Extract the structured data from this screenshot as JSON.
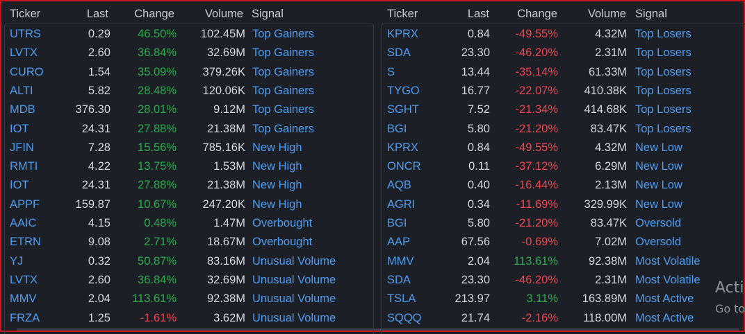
{
  "headers": {
    "ticker": "Ticker",
    "last": "Last",
    "change": "Change",
    "volume": "Volume",
    "signal": "Signal"
  },
  "left_rows": [
    {
      "ticker": "UTRS",
      "last": "0.29",
      "change": "46.50%",
      "dir": "pos",
      "volume": "102.45M",
      "signal": "Top Gainers"
    },
    {
      "ticker": "LVTX",
      "last": "2.60",
      "change": "36.84%",
      "dir": "pos",
      "volume": "32.69M",
      "signal": "Top Gainers"
    },
    {
      "ticker": "CURO",
      "last": "1.54",
      "change": "35.09%",
      "dir": "pos",
      "volume": "379.26K",
      "signal": "Top Gainers"
    },
    {
      "ticker": "ALTI",
      "last": "5.82",
      "change": "28.48%",
      "dir": "pos",
      "volume": "120.06K",
      "signal": "Top Gainers"
    },
    {
      "ticker": "MDB",
      "last": "376.30",
      "change": "28.01%",
      "dir": "pos",
      "volume": "9.12M",
      "signal": "Top Gainers"
    },
    {
      "ticker": "IOT",
      "last": "24.31",
      "change": "27.88%",
      "dir": "pos",
      "volume": "21.38M",
      "signal": "Top Gainers"
    },
    {
      "ticker": "JFIN",
      "last": "7.28",
      "change": "15.56%",
      "dir": "pos",
      "volume": "785.16K",
      "signal": "New High"
    },
    {
      "ticker": "RMTI",
      "last": "4.22",
      "change": "13.75%",
      "dir": "pos",
      "volume": "1.53M",
      "signal": "New High"
    },
    {
      "ticker": "IOT",
      "last": "24.31",
      "change": "27.88%",
      "dir": "pos",
      "volume": "21.38M",
      "signal": "New High"
    },
    {
      "ticker": "APPF",
      "last": "159.87",
      "change": "10.67%",
      "dir": "pos",
      "volume": "247.20K",
      "signal": "New High"
    },
    {
      "ticker": "AAIC",
      "last": "4.15",
      "change": "0.48%",
      "dir": "pos",
      "volume": "1.47M",
      "signal": "Overbought"
    },
    {
      "ticker": "ETRN",
      "last": "9.08",
      "change": "2.71%",
      "dir": "pos",
      "volume": "18.67M",
      "signal": "Overbought"
    },
    {
      "ticker": "YJ",
      "last": "0.32",
      "change": "50.87%",
      "dir": "pos",
      "volume": "83.16M",
      "signal": "Unusual Volume"
    },
    {
      "ticker": "LVTX",
      "last": "2.60",
      "change": "36.84%",
      "dir": "pos",
      "volume": "32.69M",
      "signal": "Unusual Volume"
    },
    {
      "ticker": "MMV",
      "last": "2.04",
      "change": "113.61%",
      "dir": "pos",
      "volume": "92.38M",
      "signal": "Unusual Volume"
    },
    {
      "ticker": "FRZA",
      "last": "1.25",
      "change": "-1.61%",
      "dir": "neg",
      "volume": "3.62M",
      "signal": "Unusual Volume"
    }
  ],
  "right_rows": [
    {
      "ticker": "KPRX",
      "last": "0.84",
      "change": "-49.55%",
      "dir": "neg",
      "volume": "4.32M",
      "signal": "Top Losers"
    },
    {
      "ticker": "SDA",
      "last": "23.30",
      "change": "-46.20%",
      "dir": "neg",
      "volume": "2.31M",
      "signal": "Top Losers"
    },
    {
      "ticker": "S",
      "last": "13.44",
      "change": "-35.14%",
      "dir": "neg",
      "volume": "61.33M",
      "signal": "Top Losers"
    },
    {
      "ticker": "TYGO",
      "last": "16.77",
      "change": "-22.07%",
      "dir": "neg",
      "volume": "410.38K",
      "signal": "Top Losers"
    },
    {
      "ticker": "SGHT",
      "last": "7.52",
      "change": "-21.34%",
      "dir": "neg",
      "volume": "414.68K",
      "signal": "Top Losers"
    },
    {
      "ticker": "BGI",
      "last": "5.80",
      "change": "-21.20%",
      "dir": "neg",
      "volume": "83.47K",
      "signal": "Top Losers"
    },
    {
      "ticker": "KPRX",
      "last": "0.84",
      "change": "-49.55%",
      "dir": "neg",
      "volume": "4.32M",
      "signal": "New Low"
    },
    {
      "ticker": "ONCR",
      "last": "0.11",
      "change": "-37.12%",
      "dir": "neg",
      "volume": "6.29M",
      "signal": "New Low"
    },
    {
      "ticker": "AQB",
      "last": "0.40",
      "change": "-16.44%",
      "dir": "neg",
      "volume": "2.13M",
      "signal": "New Low"
    },
    {
      "ticker": "AGRI",
      "last": "0.34",
      "change": "-11.69%",
      "dir": "neg",
      "volume": "329.99K",
      "signal": "New Low"
    },
    {
      "ticker": "BGI",
      "last": "5.80",
      "change": "-21.20%",
      "dir": "neg",
      "volume": "83.47K",
      "signal": "Oversold"
    },
    {
      "ticker": "AAP",
      "last": "67.56",
      "change": "-0.69%",
      "dir": "neg",
      "volume": "7.02M",
      "signal": "Oversold"
    },
    {
      "ticker": "MMV",
      "last": "2.04",
      "change": "113.61%",
      "dir": "pos",
      "volume": "92.38M",
      "signal": "Most Volatile"
    },
    {
      "ticker": "SDA",
      "last": "23.30",
      "change": "-46.20%",
      "dir": "neg",
      "volume": "2.31M",
      "signal": "Most Volatile"
    },
    {
      "ticker": "TSLA",
      "last": "213.97",
      "change": "3.11%",
      "dir": "pos",
      "volume": "163.89M",
      "signal": "Most Active"
    },
    {
      "ticker": "SQQQ",
      "last": "21.74",
      "change": "-2.16%",
      "dir": "neg",
      "volume": "118.00M",
      "signal": "Most Active"
    }
  ],
  "watermark": {
    "line1": "Acti",
    "line2": "Go to"
  },
  "colors": {
    "positive": "#2dab4f",
    "negative": "#f0424f",
    "link": "#4f9cf0",
    "frame": "#c8161d"
  }
}
